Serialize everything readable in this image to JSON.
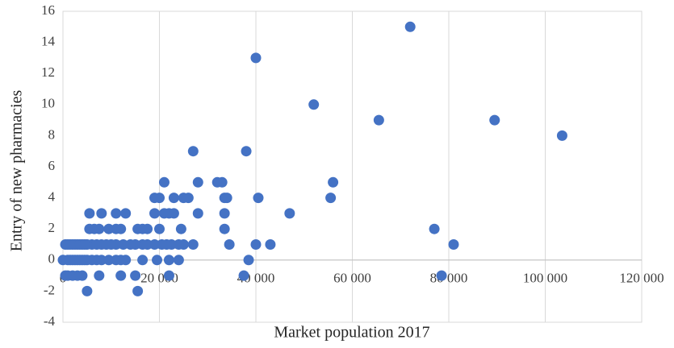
{
  "chart_data": {
    "type": "scatter",
    "x_label": "Market population 2017",
    "y_label": "Entry of new pharmacies",
    "color": "#4472c4",
    "grid": true,
    "xlim": [
      0,
      120000
    ],
    "xticks": [
      0,
      {
        "value": 20000,
        "label": "20 000"
      },
      {
        "value": 40000,
        "label": "40 000"
      },
      {
        "value": 60000,
        "label": "60 000"
      },
      {
        "value": 80000,
        "label": "80 000"
      },
      {
        "value": 100000,
        "label": "100 000"
      },
      {
        "value": 120000,
        "label": "120 000"
      }
    ],
    "ylim": [
      -4,
      16
    ],
    "yticks": [
      -4,
      -2,
      0,
      2,
      4,
      6,
      8,
      10,
      12,
      14,
      16
    ],
    "x": [
      72000,
      40000,
      52000,
      65500,
      89500,
      103500,
      27000,
      38000,
      28000,
      32000,
      33000,
      21000,
      56000,
      55500,
      40500,
      34000,
      33500,
      26000,
      25000,
      23000,
      20000,
      19000,
      47000,
      33500,
      28000,
      23000,
      22000,
      19000,
      21000,
      13000,
      11000,
      8000,
      5500,
      77000,
      33500,
      24500,
      20000,
      17500,
      15500,
      16500,
      12000,
      11000,
      9500,
      7500,
      6500,
      5500,
      81000,
      43000,
      40000,
      34500,
      27000,
      25000,
      24000,
      22500,
      21500,
      20500,
      19000,
      17500,
      16500,
      15000,
      14000,
      12500,
      11000,
      10000,
      9000,
      8000,
      7000,
      6000,
      5000,
      4000,
      3000,
      2000,
      1000,
      38500,
      24000,
      22000,
      19500,
      16500,
      13000,
      12000,
      11000,
      9500,
      8000,
      7000,
      6000,
      5000,
      4000,
      3000,
      2000,
      1000,
      0,
      37500,
      78500,
      22000,
      15000,
      12000,
      7500,
      4000,
      3000,
      2000,
      1000,
      500,
      5000,
      15500,
      500,
      1500,
      2500,
      3500,
      4500,
      1500,
      2500,
      3500,
      4500
    ],
    "y": [
      15,
      13,
      10,
      9,
      9,
      8,
      7,
      7,
      5,
      5,
      5,
      5,
      5,
      4,
      4,
      4,
      4,
      4,
      4,
      4,
      4,
      4,
      3,
      3,
      3,
      3,
      3,
      3,
      3,
      3,
      3,
      3,
      3,
      2,
      2,
      2,
      2,
      2,
      2,
      2,
      2,
      2,
      2,
      2,
      2,
      2,
      1,
      1,
      1,
      1,
      1,
      1,
      1,
      1,
      1,
      1,
      1,
      1,
      1,
      1,
      1,
      1,
      1,
      1,
      1,
      1,
      1,
      1,
      1,
      1,
      1,
      1,
      1,
      0,
      0,
      0,
      0,
      0,
      0,
      0,
      0,
      0,
      0,
      0,
      0,
      0,
      0,
      0,
      0,
      0,
      0,
      -1,
      -1,
      -1,
      -1,
      -1,
      -1,
      -1,
      -1,
      -1,
      -1,
      -1,
      -2,
      -2,
      1,
      1,
      1,
      1,
      1,
      0,
      0,
      0,
      0
    ]
  }
}
